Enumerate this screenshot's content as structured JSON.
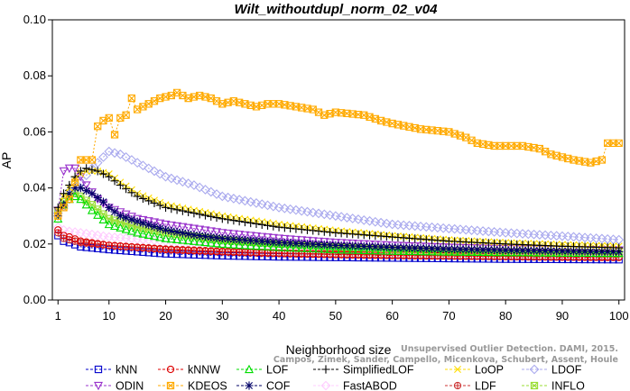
{
  "chart_data": {
    "type": "line",
    "title": "Wilt_withoutdupl_norm_02_v04",
    "xlabel": "Neighborhood size",
    "ylabel": "AP",
    "xlim": [
      0,
      101
    ],
    "ylim": [
      0.0,
      0.1
    ],
    "xticks": [
      1,
      10,
      20,
      30,
      40,
      50,
      60,
      70,
      80,
      90,
      100
    ],
    "yticks": [
      0.0,
      0.02,
      0.04,
      0.06,
      0.08,
      0.1
    ],
    "ytick_labels": [
      "0.00",
      "0.02",
      "0.04",
      "0.06",
      "0.08",
      "0.10"
    ],
    "grid": false,
    "legend_position": "bottom",
    "series": [
      {
        "name": "kNN",
        "color": "#0000cc",
        "marker": "square",
        "points": [
          [
            1,
            0.023
          ],
          [
            2,
            0.021
          ],
          [
            3,
            0.0205
          ],
          [
            5,
            0.019
          ],
          [
            10,
            0.018
          ],
          [
            20,
            0.0165
          ],
          [
            30,
            0.0158
          ],
          [
            40,
            0.0154
          ],
          [
            50,
            0.0152
          ],
          [
            60,
            0.015
          ],
          [
            70,
            0.0148
          ],
          [
            80,
            0.0146
          ],
          [
            90,
            0.0145
          ],
          [
            100,
            0.0144
          ]
        ]
      },
      {
        "name": "kNNW",
        "color": "#dd0000",
        "marker": "circle",
        "points": [
          [
            1,
            0.025
          ],
          [
            2,
            0.023
          ],
          [
            3,
            0.0225
          ],
          [
            5,
            0.021
          ],
          [
            10,
            0.0195
          ],
          [
            20,
            0.018
          ],
          [
            30,
            0.0172
          ],
          [
            40,
            0.0166
          ],
          [
            50,
            0.0162
          ],
          [
            60,
            0.0159
          ],
          [
            70,
            0.0157
          ],
          [
            80,
            0.0155
          ],
          [
            90,
            0.0153
          ],
          [
            100,
            0.0152
          ]
        ]
      },
      {
        "name": "LOF",
        "color": "#00dd00",
        "marker": "triangle",
        "points": [
          [
            1,
            0.029
          ],
          [
            2,
            0.034
          ],
          [
            3,
            0.036
          ],
          [
            4,
            0.037
          ],
          [
            5,
            0.036
          ],
          [
            7,
            0.032
          ],
          [
            10,
            0.027
          ],
          [
            15,
            0.024
          ],
          [
            20,
            0.022
          ],
          [
            30,
            0.02
          ],
          [
            40,
            0.0188
          ],
          [
            50,
            0.018
          ],
          [
            60,
            0.0175
          ],
          [
            70,
            0.0172
          ],
          [
            80,
            0.017
          ],
          [
            90,
            0.0168
          ],
          [
            100,
            0.0167
          ]
        ]
      },
      {
        "name": "SimplifiedLOF",
        "color": "#000000",
        "marker": "plus",
        "points": [
          [
            1,
            0.033
          ],
          [
            2,
            0.038
          ],
          [
            3,
            0.041
          ],
          [
            4,
            0.044
          ],
          [
            5,
            0.046
          ],
          [
            6,
            0.047
          ],
          [
            8,
            0.046
          ],
          [
            10,
            0.044
          ],
          [
            12,
            0.041
          ],
          [
            15,
            0.037
          ],
          [
            20,
            0.033
          ],
          [
            30,
            0.029
          ],
          [
            40,
            0.026
          ],
          [
            50,
            0.024
          ],
          [
            60,
            0.0225
          ],
          [
            70,
            0.021
          ],
          [
            80,
            0.02
          ],
          [
            90,
            0.0192
          ],
          [
            100,
            0.0186
          ]
        ]
      },
      {
        "name": "LoOP",
        "color": "#ffdd00",
        "marker": "cross",
        "points": [
          [
            1,
            0.032
          ],
          [
            2,
            0.037
          ],
          [
            3,
            0.04
          ],
          [
            4,
            0.043
          ],
          [
            5,
            0.045
          ],
          [
            6,
            0.046
          ],
          [
            8,
            0.046
          ],
          [
            10,
            0.045
          ],
          [
            12,
            0.042
          ],
          [
            15,
            0.038
          ],
          [
            20,
            0.034
          ],
          [
            30,
            0.03
          ],
          [
            40,
            0.027
          ],
          [
            50,
            0.0248
          ],
          [
            60,
            0.023
          ],
          [
            70,
            0.0215
          ],
          [
            80,
            0.0205
          ],
          [
            90,
            0.0198
          ],
          [
            100,
            0.0192
          ]
        ]
      },
      {
        "name": "LDOF",
        "color": "#aaaaee",
        "marker": "diamond",
        "points": [
          [
            1,
            0.031
          ],
          [
            3,
            0.036
          ],
          [
            5,
            0.042
          ],
          [
            7,
            0.047
          ],
          [
            9,
            0.051
          ],
          [
            10,
            0.053
          ],
          [
            12,
            0.052
          ],
          [
            15,
            0.049
          ],
          [
            20,
            0.044
          ],
          [
            25,
            0.041
          ],
          [
            30,
            0.037
          ],
          [
            40,
            0.033
          ],
          [
            50,
            0.03
          ],
          [
            60,
            0.027
          ],
          [
            70,
            0.0255
          ],
          [
            80,
            0.024
          ],
          [
            90,
            0.0228
          ],
          [
            100,
            0.0215
          ]
        ]
      },
      {
        "name": "ODIN",
        "color": "#9933cc",
        "marker": "triangle-down",
        "points": [
          [
            1,
            0.032
          ],
          [
            2,
            0.046
          ],
          [
            3,
            0.047
          ],
          [
            4,
            0.047
          ],
          [
            5,
            0.044
          ],
          [
            6,
            0.041
          ],
          [
            8,
            0.036
          ],
          [
            10,
            0.033
          ],
          [
            15,
            0.029
          ],
          [
            20,
            0.027
          ],
          [
            30,
            0.024
          ],
          [
            40,
            0.022
          ],
          [
            50,
            0.0205
          ],
          [
            60,
            0.0195
          ],
          [
            70,
            0.0188
          ],
          [
            80,
            0.0183
          ],
          [
            90,
            0.018
          ],
          [
            100,
            0.0178
          ]
        ]
      },
      {
        "name": "KDEOS",
        "color": "#ffaa00",
        "marker": "boxed-x",
        "points": [
          [
            1,
            0.03
          ],
          [
            2,
            0.033
          ],
          [
            3,
            0.036
          ],
          [
            4,
            0.042
          ],
          [
            5,
            0.05
          ],
          [
            6,
            0.05
          ],
          [
            7,
            0.05
          ],
          [
            8,
            0.062
          ],
          [
            9,
            0.064
          ],
          [
            10,
            0.065
          ],
          [
            11,
            0.059
          ],
          [
            12,
            0.065
          ],
          [
            13,
            0.066
          ],
          [
            14,
            0.072
          ],
          [
            15,
            0.068
          ],
          [
            17,
            0.07
          ],
          [
            19,
            0.072
          ],
          [
            21,
            0.073
          ],
          [
            22,
            0.074
          ],
          [
            24,
            0.072
          ],
          [
            26,
            0.073
          ],
          [
            28,
            0.072
          ],
          [
            30,
            0.07
          ],
          [
            32,
            0.071
          ],
          [
            34,
            0.07
          ],
          [
            36,
            0.069
          ],
          [
            38,
            0.07
          ],
          [
            40,
            0.07
          ],
          [
            43,
            0.069
          ],
          [
            46,
            0.068
          ],
          [
            48,
            0.066
          ],
          [
            50,
            0.067
          ],
          [
            55,
            0.066
          ],
          [
            58,
            0.064
          ],
          [
            60,
            0.063
          ],
          [
            65,
            0.061
          ],
          [
            70,
            0.06
          ],
          [
            73,
            0.058
          ],
          [
            75,
            0.056
          ],
          [
            78,
            0.055
          ],
          [
            80,
            0.055
          ],
          [
            83,
            0.055
          ],
          [
            86,
            0.054
          ],
          [
            88,
            0.052
          ],
          [
            90,
            0.051
          ],
          [
            92,
            0.05
          ],
          [
            95,
            0.049
          ],
          [
            97,
            0.05
          ],
          [
            98,
            0.056
          ],
          [
            100,
            0.056
          ]
        ]
      },
      {
        "name": "COF",
        "color": "#000066",
        "marker": "asterisk",
        "points": [
          [
            1,
            0.03
          ],
          [
            2,
            0.034
          ],
          [
            3,
            0.038
          ],
          [
            4,
            0.04
          ],
          [
            5,
            0.04
          ],
          [
            7,
            0.038
          ],
          [
            9,
            0.035
          ],
          [
            10,
            0.033
          ],
          [
            12,
            0.03
          ],
          [
            15,
            0.028
          ],
          [
            20,
            0.025
          ],
          [
            25,
            0.0232
          ],
          [
            30,
            0.022
          ],
          [
            40,
            0.0205
          ],
          [
            50,
            0.0195
          ],
          [
            60,
            0.0188
          ],
          [
            70,
            0.0182
          ],
          [
            80,
            0.0178
          ],
          [
            90,
            0.0175
          ],
          [
            100,
            0.0172
          ]
        ]
      },
      {
        "name": "FastABOD",
        "color": "#ffccff",
        "marker": "diamond",
        "points": [
          [
            1,
            0.026
          ],
          [
            2,
            0.025
          ],
          [
            3,
            0.0245
          ],
          [
            5,
            0.024
          ],
          [
            10,
            0.0225
          ],
          [
            20,
            0.021
          ],
          [
            30,
            0.0198
          ],
          [
            40,
            0.0188
          ],
          [
            50,
            0.018
          ],
          [
            60,
            0.0175
          ],
          [
            70,
            0.017
          ],
          [
            80,
            0.0167
          ],
          [
            90,
            0.0164
          ],
          [
            100,
            0.0162
          ]
        ]
      },
      {
        "name": "LDF",
        "color": "#cc3333",
        "marker": "circle-plus",
        "points": [
          [
            1,
            0.024
          ],
          [
            2,
            0.022
          ],
          [
            3,
            0.0215
          ],
          [
            5,
            0.0205
          ],
          [
            10,
            0.0195
          ],
          [
            20,
            0.0182
          ],
          [
            30,
            0.0174
          ],
          [
            40,
            0.0168
          ],
          [
            50,
            0.0164
          ],
          [
            60,
            0.0161
          ],
          [
            70,
            0.0158
          ],
          [
            80,
            0.0156
          ],
          [
            90,
            0.0155
          ],
          [
            100,
            0.0154
          ]
        ]
      },
      {
        "name": "INFLO",
        "color": "#99dd33",
        "marker": "hourglass",
        "points": [
          [
            1,
            0.032
          ],
          [
            2,
            0.035
          ],
          [
            3,
            0.037
          ],
          [
            4,
            0.038
          ],
          [
            5,
            0.037
          ],
          [
            7,
            0.034
          ],
          [
            10,
            0.029
          ],
          [
            15,
            0.026
          ],
          [
            20,
            0.024
          ],
          [
            30,
            0.0215
          ],
          [
            40,
            0.02
          ],
          [
            50,
            0.019
          ],
          [
            60,
            0.0182
          ],
          [
            70,
            0.0176
          ],
          [
            80,
            0.0172
          ],
          [
            90,
            0.0169
          ],
          [
            100,
            0.0166
          ]
        ]
      }
    ]
  },
  "watermark": {
    "line1": "Unsupervised Outlier Detection. DAMI, 2015.",
    "line2": "Campos, Zimek, Sander, Campello, Micenkova, Schubert, Assent, Houle"
  }
}
